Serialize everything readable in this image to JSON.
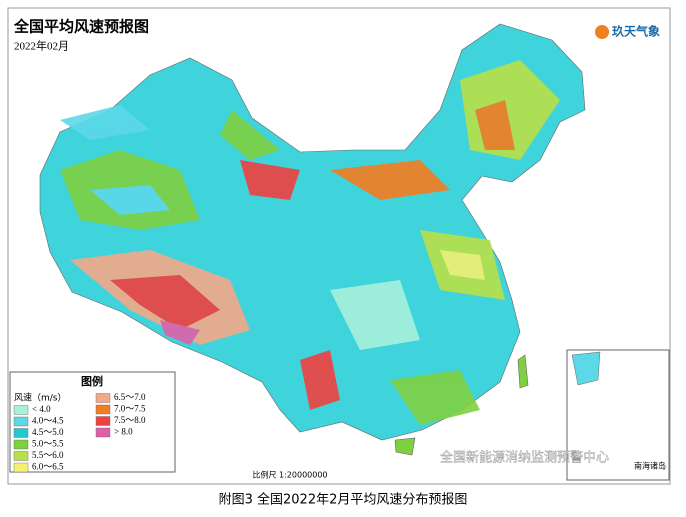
{
  "header": {
    "title": "全国平均风速预报图",
    "date": "2022年02月",
    "logo": "玖天气象"
  },
  "legend": {
    "title": "图例",
    "unit": "风速（m/s）",
    "items": [
      {
        "label": "< 4.0",
        "color": "#a8f0dc"
      },
      {
        "label": "4.0～4.5",
        "color": "#5cd8e8"
      },
      {
        "label": "4.5～5.0",
        "color": "#20c8d0"
      },
      {
        "label": "5.0～5.5",
        "color": "#7ed040"
      },
      {
        "label": "5.5～6.0",
        "color": "#b8e048"
      },
      {
        "label": "6.0～6.5",
        "color": "#f4f070"
      },
      {
        "label": "6.5～7.0",
        "color": "#f4a888"
      },
      {
        "label": "7.0～7.5",
        "color": "#f47c20"
      },
      {
        "label": "7.5～8.0",
        "color": "#f04040"
      },
      {
        "label": "> 8.0",
        "color": "#e060a8"
      }
    ]
  },
  "scale": "比例尺 1:20000000",
  "inset": "南海诸岛",
  "watermark": "全国新能源消纳监测预警中心",
  "caption": "附图3  全国2022年2月平均风速分布预报图"
}
